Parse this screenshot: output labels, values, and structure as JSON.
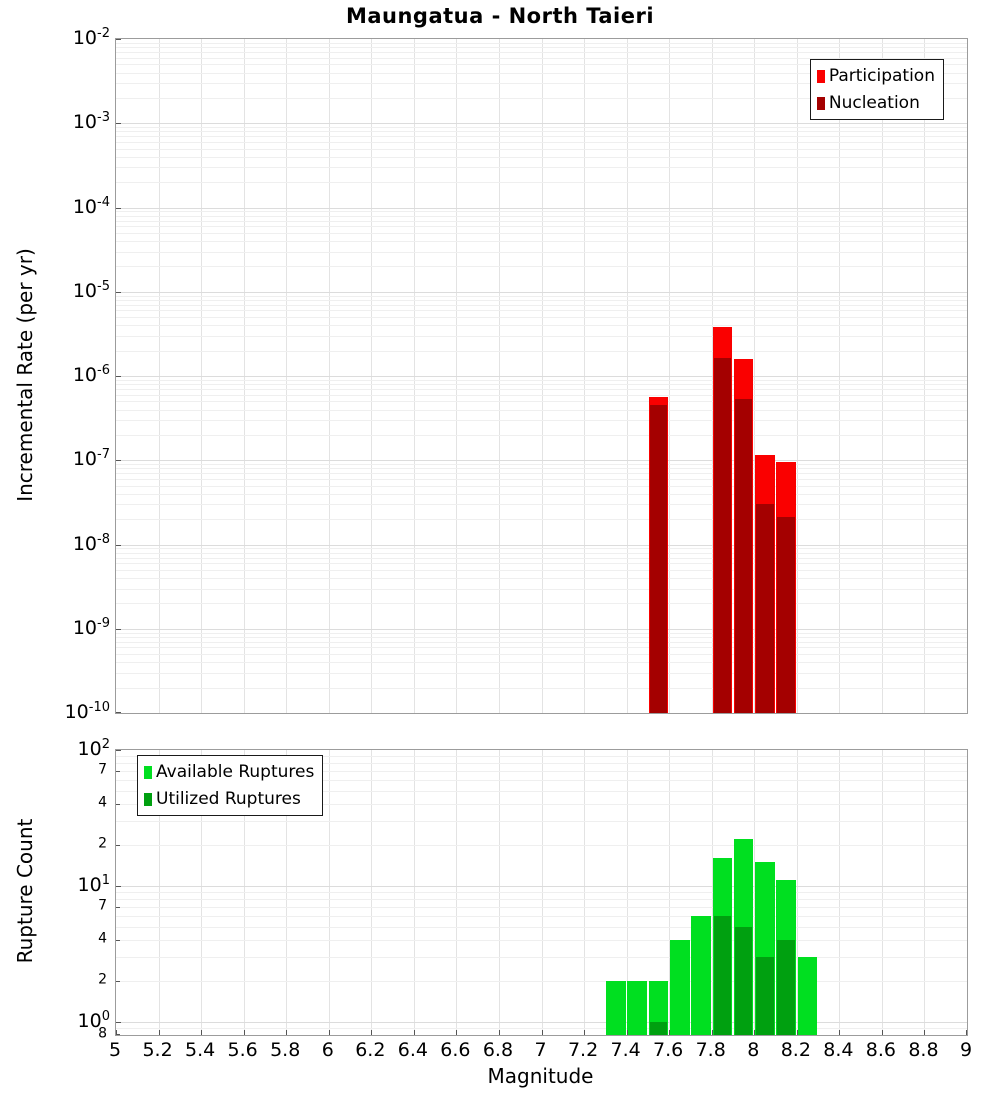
{
  "title": "Maungatua - North Taieri",
  "xlabel": "Magnitude",
  "x_ticks": [
    {
      "value": 5,
      "label": "5"
    },
    {
      "value": 5.2,
      "label": "5.2"
    },
    {
      "value": 5.4,
      "label": "5.4"
    },
    {
      "value": 5.6,
      "label": "5.6"
    },
    {
      "value": 5.8,
      "label": "5.8"
    },
    {
      "value": 6,
      "label": "6"
    },
    {
      "value": 6.2,
      "label": "6.2"
    },
    {
      "value": 6.4,
      "label": "6.4"
    },
    {
      "value": 6.6,
      "label": "6.6"
    },
    {
      "value": 6.8,
      "label": "6.8"
    },
    {
      "value": 7,
      "label": "7"
    },
    {
      "value": 7.2,
      "label": "7.2"
    },
    {
      "value": 7.4,
      "label": "7.4"
    },
    {
      "value": 7.6,
      "label": "7.6"
    },
    {
      "value": 7.8,
      "label": "7.8"
    },
    {
      "value": 8,
      "label": "8"
    },
    {
      "value": 8.2,
      "label": "8.2"
    },
    {
      "value": 8.4,
      "label": "8.4"
    },
    {
      "value": 8.6,
      "label": "8.6"
    },
    {
      "value": 8.8,
      "label": "8.8"
    },
    {
      "value": 9,
      "label": "9"
    }
  ],
  "top_chart": {
    "ylabel": "Incremental Rate (per yr)",
    "y_tick_exponents": [
      -2,
      -3,
      -4,
      -5,
      -6,
      -7,
      -8,
      -9,
      -10
    ]
  },
  "bottom_chart": {
    "ylabel": "Rupture Count",
    "y_major_tick_exponents": [
      2,
      1,
      0
    ],
    "y_minor_ticks": [
      {
        "value": 70,
        "label": "7"
      },
      {
        "value": 40,
        "label": "4"
      },
      {
        "value": 20,
        "label": "2"
      },
      {
        "value": 7,
        "label": "7"
      },
      {
        "value": 4,
        "label": "4"
      },
      {
        "value": 2,
        "label": "2"
      },
      {
        "value": 0.8,
        "label": "8"
      }
    ]
  },
  "colors": {
    "participation": "#fa0000",
    "nucleation": "#a40000",
    "available": "#00df20",
    "utilized": "#00a010",
    "grid_major": "#dcdcdc",
    "grid_minor": "#efefef",
    "grid_vertical": "#e3e3e3",
    "axis_border": "#9c9c9c",
    "tick": "#555555"
  },
  "chart_data": [
    {
      "type": "bar",
      "panel": "top",
      "title": "Maungatua - North Taieri",
      "xlabel": "Magnitude",
      "ylabel": "Incremental Rate (per yr)",
      "xscale": "linear",
      "yscale": "log",
      "xlim": [
        5,
        9
      ],
      "ylim": [
        1e-10,
        0.01
      ],
      "grid": true,
      "bin_width": 0.1,
      "categories": [
        7.5,
        7.8,
        7.9,
        8.0,
        8.1
      ],
      "series": [
        {
          "name": "Participation",
          "color": "#fa0000",
          "values": [
            5.7e-07,
            3.8e-06,
            1.6e-06,
            1.15e-07,
            9.5e-08
          ]
        },
        {
          "name": "Nucleation",
          "color": "#a40000",
          "values": [
            4.5e-07,
            1.65e-06,
            5.3e-07,
            3e-08,
            2.1e-08
          ]
        }
      ],
      "legend_position": "top-right"
    },
    {
      "type": "bar",
      "panel": "bottom",
      "xlabel": "Magnitude",
      "ylabel": "Rupture Count",
      "xscale": "linear",
      "yscale": "log",
      "xlim": [
        5,
        9
      ],
      "ylim": [
        0.8,
        100
      ],
      "grid": true,
      "bin_width": 0.1,
      "categories": [
        7.3,
        7.4,
        7.5,
        7.6,
        7.7,
        7.8,
        7.9,
        8.0,
        8.1,
        8.2
      ],
      "series": [
        {
          "name": "Available Ruptures",
          "color": "#00df20",
          "values": [
            2,
            2,
            2,
            4,
            6,
            16,
            22,
            15,
            11,
            3
          ]
        },
        {
          "name": "Utilized Ruptures",
          "color": "#00a010",
          "values": [
            0,
            0,
            1,
            0,
            0,
            6,
            5,
            3,
            4,
            0
          ]
        }
      ],
      "legend_position": "top-left"
    }
  ]
}
